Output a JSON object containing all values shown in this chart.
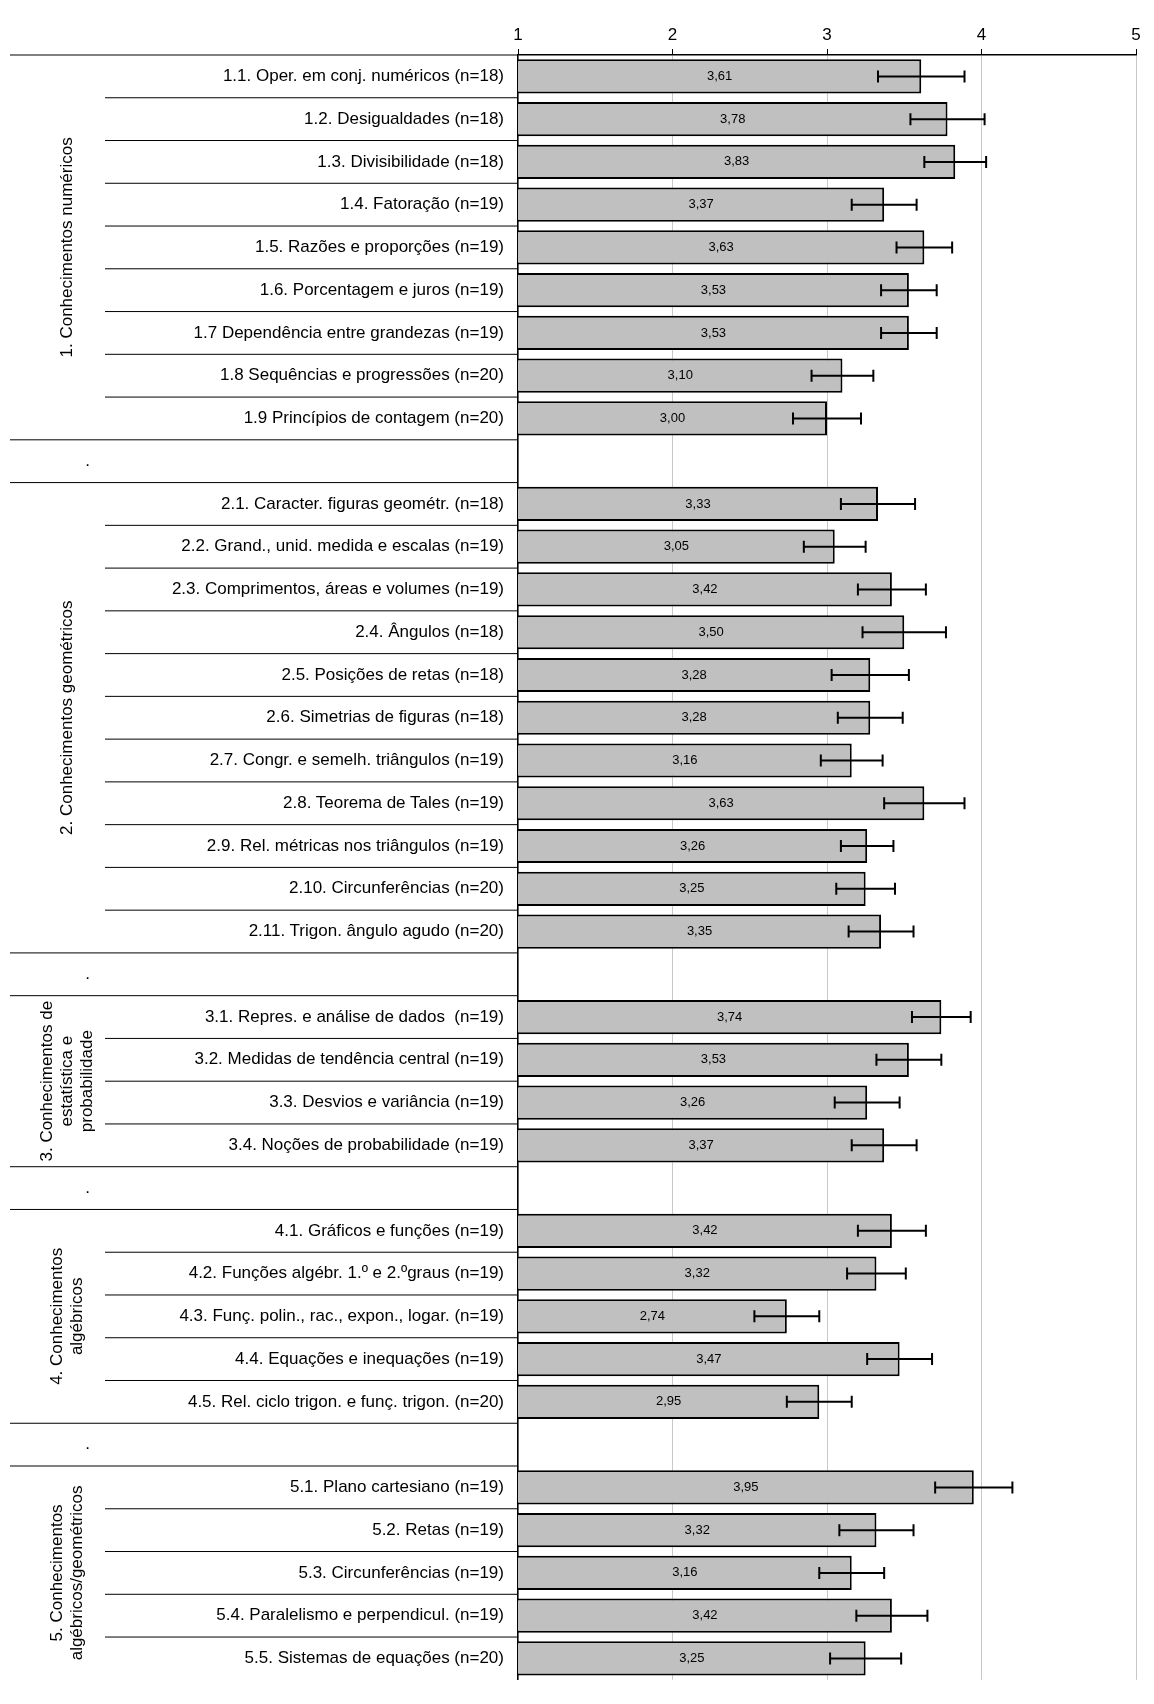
{
  "chart_data": {
    "type": "bar",
    "orientation": "horizontal",
    "categories": [
      "1.1. Oper. em conj. numéricos (n=18)",
      "1.2. Desigualdades (n=18)",
      "1.3. Divisibilidade (n=18)",
      "1.4. Fatoração (n=19)",
      "1.5. Razões e proporções (n=19)",
      "1.6. Porcentagem e juros (n=19)",
      "1.7 Dependência entre grandezas (n=19)",
      "1.8 Sequências e progressões (n=20)",
      "1.9 Princípios de contagem (n=20)",
      null,
      "2.1. Caracter. figuras geométr. (n=18)",
      "2.2. Grand., unid. medida e escalas (n=19)",
      "2.3. Comprimentos, áreas e volumes (n=19)",
      "2.4. Ângulos (n=18)",
      "2.5. Posições de retas (n=18)",
      "2.6. Simetrias de figuras (n=18)",
      "2.7. Congr. e semelh. triângulos (n=19)",
      "2.8. Teorema de Tales (n=19)",
      "2.9. Rel. métricas nos triângulos (n=19)",
      "2.10. Circunferências (n=20)",
      "2.11. Trigon. ângulo agudo (n=20)",
      null,
      "3.1. Repres. e análise de dados  (n=19)",
      "3.2. Medidas de tendência central (n=19)",
      "3.3. Desvios e variância (n=19)",
      "3.4. Noções de probabilidade (n=19)",
      null,
      "4.1. Gráficos e funções (n=19)",
      "4.2. Funções algébr. 1.º e 2.ºgraus (n=19)",
      "4.3. Funç. polin., rac., expon., logar. (n=19)",
      "4.4. Equações e inequações (n=19)",
      "4.5. Rel. ciclo trigon. e funç. trigon. (n=20)",
      null,
      "5.1. Plano cartesiano (n=19)",
      "5.2. Retas (n=19)",
      "5.3. Circunferências (n=19)",
      "5.4. Paralelismo e perpendicul. (n=19)",
      "5.5. Sistemas de equações (n=20)"
    ],
    "values": [
      3.61,
      3.78,
      3.83,
      3.37,
      3.63,
      3.53,
      3.53,
      3.1,
      3.0,
      null,
      3.33,
      3.05,
      3.42,
      3.5,
      3.28,
      3.28,
      3.16,
      3.63,
      3.26,
      3.25,
      3.35,
      null,
      3.74,
      3.53,
      3.26,
      3.37,
      null,
      3.42,
      3.32,
      2.74,
      3.47,
      2.95,
      null,
      3.95,
      3.32,
      3.16,
      3.42,
      3.25
    ],
    "value_labels": [
      "3,61",
      "3,78",
      "3,83",
      "3,37",
      "3,63",
      "3,53",
      "3,53",
      "3,10",
      "3,00",
      null,
      "3,33",
      "3,05",
      "3,42",
      "3,50",
      "3,28",
      "3,28",
      "3,16",
      "3,63",
      "3,26",
      "3,25",
      "3,35",
      null,
      "3,74",
      "3,53",
      "3,26",
      "3,37",
      null,
      "3,42",
      "3,32",
      "2,74",
      "3,47",
      "2,95",
      null,
      "3,95",
      "3,32",
      "3,16",
      "3,42",
      "3,25"
    ],
    "errors": [
      0.28,
      0.24,
      0.2,
      0.21,
      0.18,
      0.18,
      0.18,
      0.2,
      0.22,
      null,
      0.24,
      0.2,
      0.22,
      0.27,
      0.25,
      0.21,
      0.2,
      0.26,
      0.17,
      0.19,
      0.21,
      null,
      0.19,
      0.21,
      0.21,
      0.21,
      null,
      0.22,
      0.19,
      0.21,
      0.21,
      0.21,
      null,
      0.25,
      0.24,
      0.21,
      0.23,
      0.23
    ],
    "color": "#c0c0c0",
    "xlim": [
      1,
      5
    ],
    "xticks": [
      1,
      2,
      3,
      4,
      5
    ],
    "grid": "x",
    "annotations": [
      "1. Conhecimentos numéricos",
      ".",
      "2. Conhecimentos geométricos",
      ".",
      "3. Conhecimentos de estatística e probabilidade",
      ".",
      "4. Conhecimentos algébricos",
      ".",
      "5. Conhecimentos algébricos/geométricos"
    ]
  }
}
